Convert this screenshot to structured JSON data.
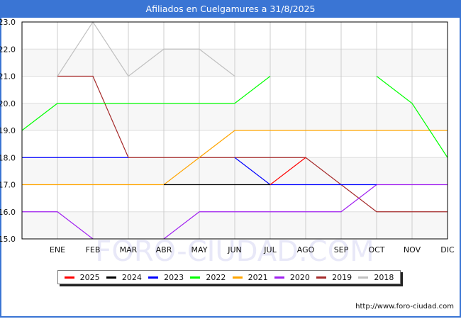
{
  "header": {
    "title": "Afiliados en Cuelgamures a 31/8/2025"
  },
  "watermark": "FORO-CIUDAD.COM",
  "footer": {
    "source_url": "http://www.foro-ciudad.com"
  },
  "chart_data": {
    "type": "line",
    "title": "Afiliados en Cuelgamures a 31/8/2025",
    "xlabel": "",
    "ylabel": "",
    "categories": [
      "",
      "ENE",
      "FEB",
      "MAR",
      "ABR",
      "MAY",
      "JUN",
      "JUL",
      "AGO",
      "SEP",
      "OCT",
      "NOV",
      "DIC"
    ],
    "ylim": [
      15.0,
      23.0
    ],
    "yticks": [
      "15.0",
      "16.0",
      "17.0",
      "18.0",
      "19.0",
      "20.0",
      "21.0",
      "22.0",
      "23.0"
    ],
    "grid": true,
    "legend_position": "bottom",
    "series": [
      {
        "name": "2025",
        "color": "#ff0000",
        "values": [
          null,
          null,
          null,
          null,
          null,
          null,
          null,
          17,
          18,
          null,
          null,
          null,
          null
        ]
      },
      {
        "name": "2024",
        "color": "#000000",
        "values": [
          null,
          null,
          null,
          null,
          17,
          17,
          17,
          17,
          null,
          null,
          null,
          null,
          null
        ]
      },
      {
        "name": "2023",
        "color": "#0000ff",
        "values": [
          18,
          18,
          18,
          18,
          null,
          null,
          18,
          17,
          17,
          17,
          17,
          null,
          null
        ]
      },
      {
        "name": "2022",
        "color": "#00ff00",
        "values": [
          19,
          20,
          20,
          20,
          20,
          20,
          20,
          21,
          null,
          null,
          21,
          20,
          18
        ]
      },
      {
        "name": "2021",
        "color": "#ffa500",
        "values": [
          17,
          17,
          17,
          17,
          17,
          18,
          19,
          19,
          19,
          19,
          19,
          19,
          19
        ]
      },
      {
        "name": "2020",
        "color": "#a020f0",
        "values": [
          16,
          16,
          15,
          null,
          15,
          16,
          16,
          16,
          16,
          16,
          17,
          17,
          17
        ]
      },
      {
        "name": "2019",
        "color": "#a52a2a",
        "values": [
          null,
          21,
          21,
          18,
          18,
          18,
          18,
          18,
          18,
          17,
          16,
          16,
          16
        ]
      },
      {
        "name": "2018",
        "color": "#c0c0c0",
        "values": [
          null,
          21,
          23,
          21,
          22,
          22,
          21,
          null,
          null,
          null,
          null,
          null,
          null
        ]
      }
    ]
  }
}
